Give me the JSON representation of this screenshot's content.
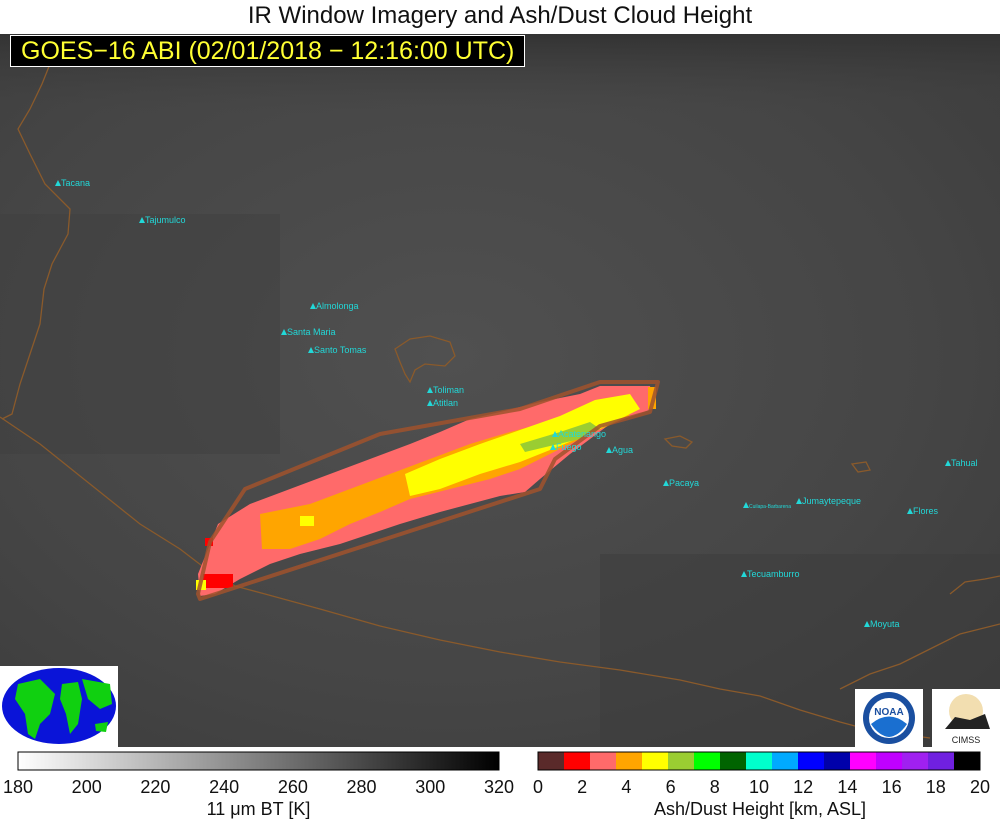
{
  "title": "IR Window Imagery and Ash/Dust Cloud Height",
  "subtitle": "GOES−16 ABI (02/01/2018 − 12:16:00 UTC)",
  "volcanoes": [
    "Tacana",
    "Tajumulco",
    "Almolonga",
    "Santa Maria",
    "Santo Tomas",
    "Toliman",
    "Atitlan",
    "Acatenango",
    "Fuego",
    "Agua",
    "Pacaya",
    "Cuilapa-Barbarena",
    "Jumaytepeque",
    "Tecuamburro",
    "Flores",
    "Tahual",
    "Moyuta"
  ],
  "colors": {
    "volcano_marker": "#22d8d8",
    "coastline": "#8a5a2b",
    "analysis_outline": "#a0522d",
    "subtitle_text": "#ffff33"
  },
  "ir_colorbar": {
    "label": "11 μm BT [K]",
    "ticks": [
      "180",
      "200",
      "220",
      "240",
      "260",
      "280",
      "300",
      "320"
    ]
  },
  "ash_colorbar": {
    "label": "Ash/Dust Height [km, ASL]",
    "ticks": [
      "0",
      "2",
      "4",
      "6",
      "8",
      "10",
      "12",
      "14",
      "16",
      "18",
      "20"
    ],
    "colors": [
      "#5a2a2a",
      "#ff0000",
      "#ff6a6a",
      "#ffa500",
      "#ffff00",
      "#9acd32",
      "#00ff00",
      "#006400",
      "#00ffcc",
      "#00aaff",
      "#0000ff",
      "#0000aa",
      "#ff00ff",
      "#c000ff",
      "#a020f0",
      "#7020e0",
      "#000000"
    ]
  },
  "logos": [
    "NOAA logo",
    "CIMSS logo"
  ]
}
